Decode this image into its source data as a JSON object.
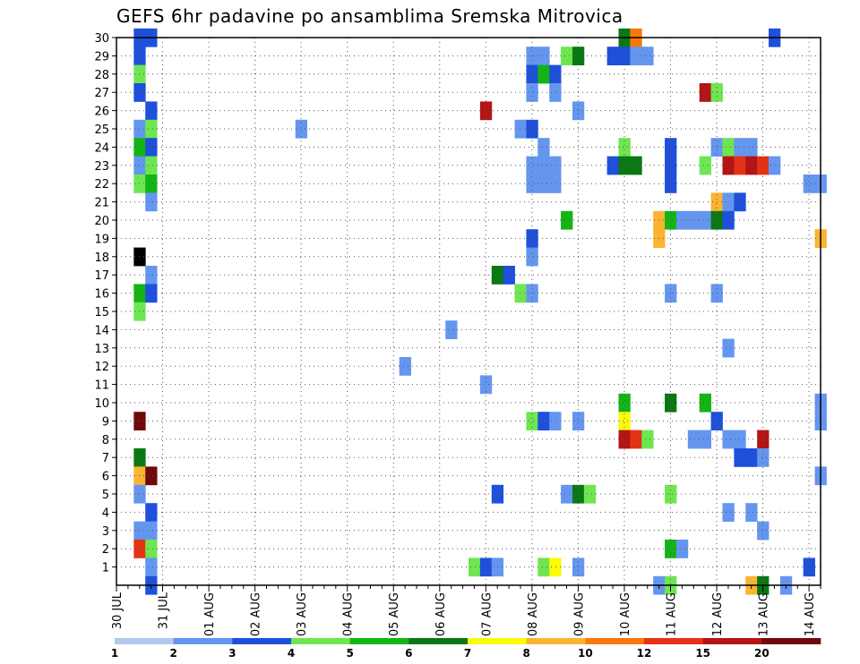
{
  "chart_data": {
    "type": "heatmap",
    "title": "GEFS 6hr padavine po ansamblima Sremska Mitrovica",
    "xlabel": "",
    "ylabel": "",
    "x_tick_labels": [
      "30 JUL",
      "31 JUL",
      "01 AUG",
      "02 AUG",
      "03 AUG",
      "04 AUG",
      "05 AUG",
      "06 AUG",
      "07 AUG",
      "08 AUG",
      "09 AUG",
      "10 AUG",
      "11 AUG",
      "12 AUG",
      "13 AUG",
      "14 AUG"
    ],
    "y_tick_labels": [
      "1",
      "2",
      "3",
      "4",
      "5",
      "6",
      "7",
      "8",
      "9",
      "10",
      "11",
      "12",
      "13",
      "14",
      "15",
      "16",
      "17",
      "18",
      "19",
      "20",
      "21",
      "22",
      "23",
      "24",
      "25",
      "26",
      "27",
      "28",
      "29",
      "30"
    ],
    "x_range_steps": [
      0,
      61
    ],
    "y_range_members": [
      0,
      30
    ],
    "grid": true,
    "legend": {
      "placement": "bottom",
      "colors": [
        "#b4c8f0",
        "#6496f0",
        "#1e50dc",
        "#6ee650",
        "#14b414",
        "#0a7814",
        "#fafa0a",
        "#fab432",
        "#fa780a",
        "#e63214",
        "#b41414",
        "#6e0a0a"
      ],
      "labels": [
        "1",
        "2",
        "3",
        "4",
        "5",
        "6",
        "7",
        "8",
        "10",
        "12",
        "15",
        "20"
      ]
    },
    "cells": [
      [
        2,
        30,
        2
      ],
      [
        3,
        30,
        2
      ],
      [
        44,
        30,
        5
      ],
      [
        45,
        30,
        8
      ],
      [
        57,
        30,
        2
      ],
      [
        2,
        29,
        2
      ],
      [
        36,
        29,
        1
      ],
      [
        37,
        29,
        1
      ],
      [
        39,
        29,
        3
      ],
      [
        40,
        29,
        5
      ],
      [
        43,
        29,
        2
      ],
      [
        44,
        29,
        2
      ],
      [
        45,
        29,
        1
      ],
      [
        46,
        29,
        1
      ],
      [
        2,
        28,
        3
      ],
      [
        36,
        28,
        2
      ],
      [
        37,
        28,
        4
      ],
      [
        38,
        28,
        2
      ],
      [
        2,
        27,
        2
      ],
      [
        36,
        27,
        1
      ],
      [
        38,
        27,
        1
      ],
      [
        51,
        27,
        10
      ],
      [
        52,
        27,
        3
      ],
      [
        3,
        26,
        2
      ],
      [
        32,
        26,
        10
      ],
      [
        40,
        26,
        1
      ],
      [
        2,
        25,
        1
      ],
      [
        3,
        25,
        3
      ],
      [
        16,
        25,
        1
      ],
      [
        35,
        25,
        1
      ],
      [
        36,
        25,
        2
      ],
      [
        2,
        24,
        4
      ],
      [
        3,
        24,
        2
      ],
      [
        37,
        24,
        1
      ],
      [
        44,
        24,
        3
      ],
      [
        48,
        24,
        2
      ],
      [
        52,
        24,
        1
      ],
      [
        53,
        24,
        3
      ],
      [
        54,
        24,
        1
      ],
      [
        55,
        24,
        1
      ],
      [
        2,
        23,
        1
      ],
      [
        3,
        23,
        3
      ],
      [
        36,
        23,
        1
      ],
      [
        37,
        23,
        1
      ],
      [
        38,
        23,
        1
      ],
      [
        43,
        23,
        2
      ],
      [
        44,
        23,
        5
      ],
      [
        45,
        23,
        5
      ],
      [
        48,
        23,
        2
      ],
      [
        51,
        23,
        3
      ],
      [
        53,
        23,
        10
      ],
      [
        54,
        23,
        9
      ],
      [
        55,
        23,
        10
      ],
      [
        56,
        23,
        9
      ],
      [
        57,
        23,
        1
      ],
      [
        2,
        22,
        3
      ],
      [
        3,
        22,
        4
      ],
      [
        36,
        22,
        1
      ],
      [
        37,
        22,
        1
      ],
      [
        38,
        22,
        1
      ],
      [
        48,
        22,
        2
      ],
      [
        60,
        22,
        1
      ],
      [
        61,
        22,
        1
      ],
      [
        3,
        21,
        1
      ],
      [
        52,
        21,
        7
      ],
      [
        53,
        21,
        1
      ],
      [
        54,
        21,
        2
      ],
      [
        39,
        20,
        4
      ],
      [
        47,
        20,
        7
      ],
      [
        48,
        20,
        4
      ],
      [
        49,
        20,
        1
      ],
      [
        50,
        20,
        1
      ],
      [
        51,
        20,
        1
      ],
      [
        52,
        20,
        5
      ],
      [
        53,
        20,
        2
      ],
      [
        36,
        19,
        2
      ],
      [
        47,
        19,
        7
      ],
      [
        61,
        19,
        7
      ],
      [
        2,
        18,
        12
      ],
      [
        36,
        18,
        1
      ],
      [
        3,
        17,
        1
      ],
      [
        33,
        17,
        5
      ],
      [
        34,
        17,
        2
      ],
      [
        2,
        16,
        4
      ],
      [
        3,
        16,
        2
      ],
      [
        35,
        16,
        3
      ],
      [
        36,
        16,
        1
      ],
      [
        48,
        16,
        1
      ],
      [
        52,
        16,
        1
      ],
      [
        2,
        15,
        3
      ],
      [
        29,
        14,
        1
      ],
      [
        53,
        13,
        1
      ],
      [
        25,
        12,
        1
      ],
      [
        32,
        11,
        1
      ],
      [
        44,
        10,
        4
      ],
      [
        48,
        10,
        5
      ],
      [
        51,
        10,
        4
      ],
      [
        61,
        10,
        1
      ],
      [
        2,
        9,
        11
      ],
      [
        36,
        9,
        3
      ],
      [
        37,
        9,
        2
      ],
      [
        38,
        9,
        1
      ],
      [
        40,
        9,
        1
      ],
      [
        44,
        9,
        6
      ],
      [
        52,
        9,
        2
      ],
      [
        61,
        9,
        1
      ],
      [
        44,
        8,
        10
      ],
      [
        45,
        8,
        9
      ],
      [
        46,
        8,
        3
      ],
      [
        50,
        8,
        1
      ],
      [
        51,
        8,
        1
      ],
      [
        53,
        8,
        1
      ],
      [
        54,
        8,
        1
      ],
      [
        56,
        8,
        10
      ],
      [
        2,
        7,
        5
      ],
      [
        54,
        7,
        2
      ],
      [
        55,
        7,
        2
      ],
      [
        56,
        7,
        1
      ],
      [
        2,
        6,
        7
      ],
      [
        3,
        6,
        11
      ],
      [
        61,
        6,
        1
      ],
      [
        2,
        5,
        1
      ],
      [
        33,
        5,
        2
      ],
      [
        39,
        5,
        1
      ],
      [
        40,
        5,
        5
      ],
      [
        41,
        5,
        3
      ],
      [
        48,
        5,
        3
      ],
      [
        3,
        4,
        2
      ],
      [
        53,
        4,
        1
      ],
      [
        55,
        4,
        1
      ],
      [
        2,
        3,
        1
      ],
      [
        3,
        3,
        1
      ],
      [
        56,
        3,
        1
      ],
      [
        2,
        2,
        9
      ],
      [
        3,
        2,
        3
      ],
      [
        48,
        2,
        4
      ],
      [
        49,
        2,
        1
      ],
      [
        3,
        1,
        1
      ],
      [
        31,
        1,
        3
      ],
      [
        32,
        1,
        2
      ],
      [
        33,
        1,
        1
      ],
      [
        37,
        1,
        3
      ],
      [
        38,
        1,
        6
      ],
      [
        40,
        1,
        1
      ],
      [
        60,
        1,
        2
      ],
      [
        3,
        0,
        2
      ],
      [
        47,
        0,
        1
      ],
      [
        48,
        0,
        3
      ],
      [
        55,
        0,
        7
      ],
      [
        56,
        0,
        5
      ],
      [
        58,
        0,
        1
      ]
    ]
  }
}
